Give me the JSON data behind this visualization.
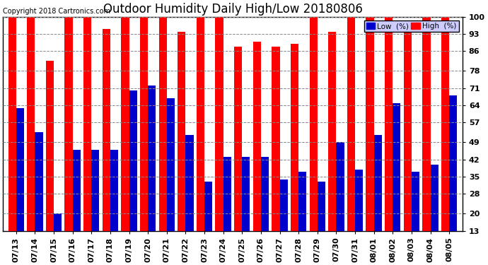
{
  "title": "Outdoor Humidity Daily High/Low 20180806",
  "copyright": "Copyright 2018 Cartronics.com",
  "dates": [
    "07/13",
    "07/14",
    "07/15",
    "07/16",
    "07/17",
    "07/18",
    "07/19",
    "07/20",
    "07/21",
    "07/22",
    "07/23",
    "07/24",
    "07/25",
    "07/26",
    "07/27",
    "07/28",
    "07/29",
    "07/30",
    "07/31",
    "08/01",
    "08/02",
    "08/03",
    "08/04",
    "08/05"
  ],
  "high": [
    100,
    100,
    82,
    100,
    100,
    95,
    100,
    100,
    100,
    94,
    100,
    100,
    88,
    90,
    88,
    89,
    100,
    94,
    100,
    100,
    100,
    95,
    100,
    100
  ],
  "low": [
    63,
    53,
    20,
    46,
    46,
    46,
    70,
    72,
    67,
    52,
    33,
    43,
    43,
    43,
    34,
    37,
    33,
    49,
    38,
    52,
    65,
    37,
    40,
    68
  ],
  "high_color": "#FF0000",
  "low_color": "#0000CC",
  "bg_color": "#FFFFFF",
  "grid_color": "#888888",
  "ylim_min": 13,
  "ylim_max": 100,
  "yticks": [
    13,
    20,
    28,
    35,
    42,
    49,
    57,
    64,
    71,
    78,
    86,
    93,
    100
  ],
  "title_fontsize": 12,
  "tick_fontsize": 8,
  "copyright_fontsize": 7,
  "legend_low_label": "Low  (%)",
  "legend_high_label": "High  (%)",
  "legend_bg": "#CCCCFF"
}
